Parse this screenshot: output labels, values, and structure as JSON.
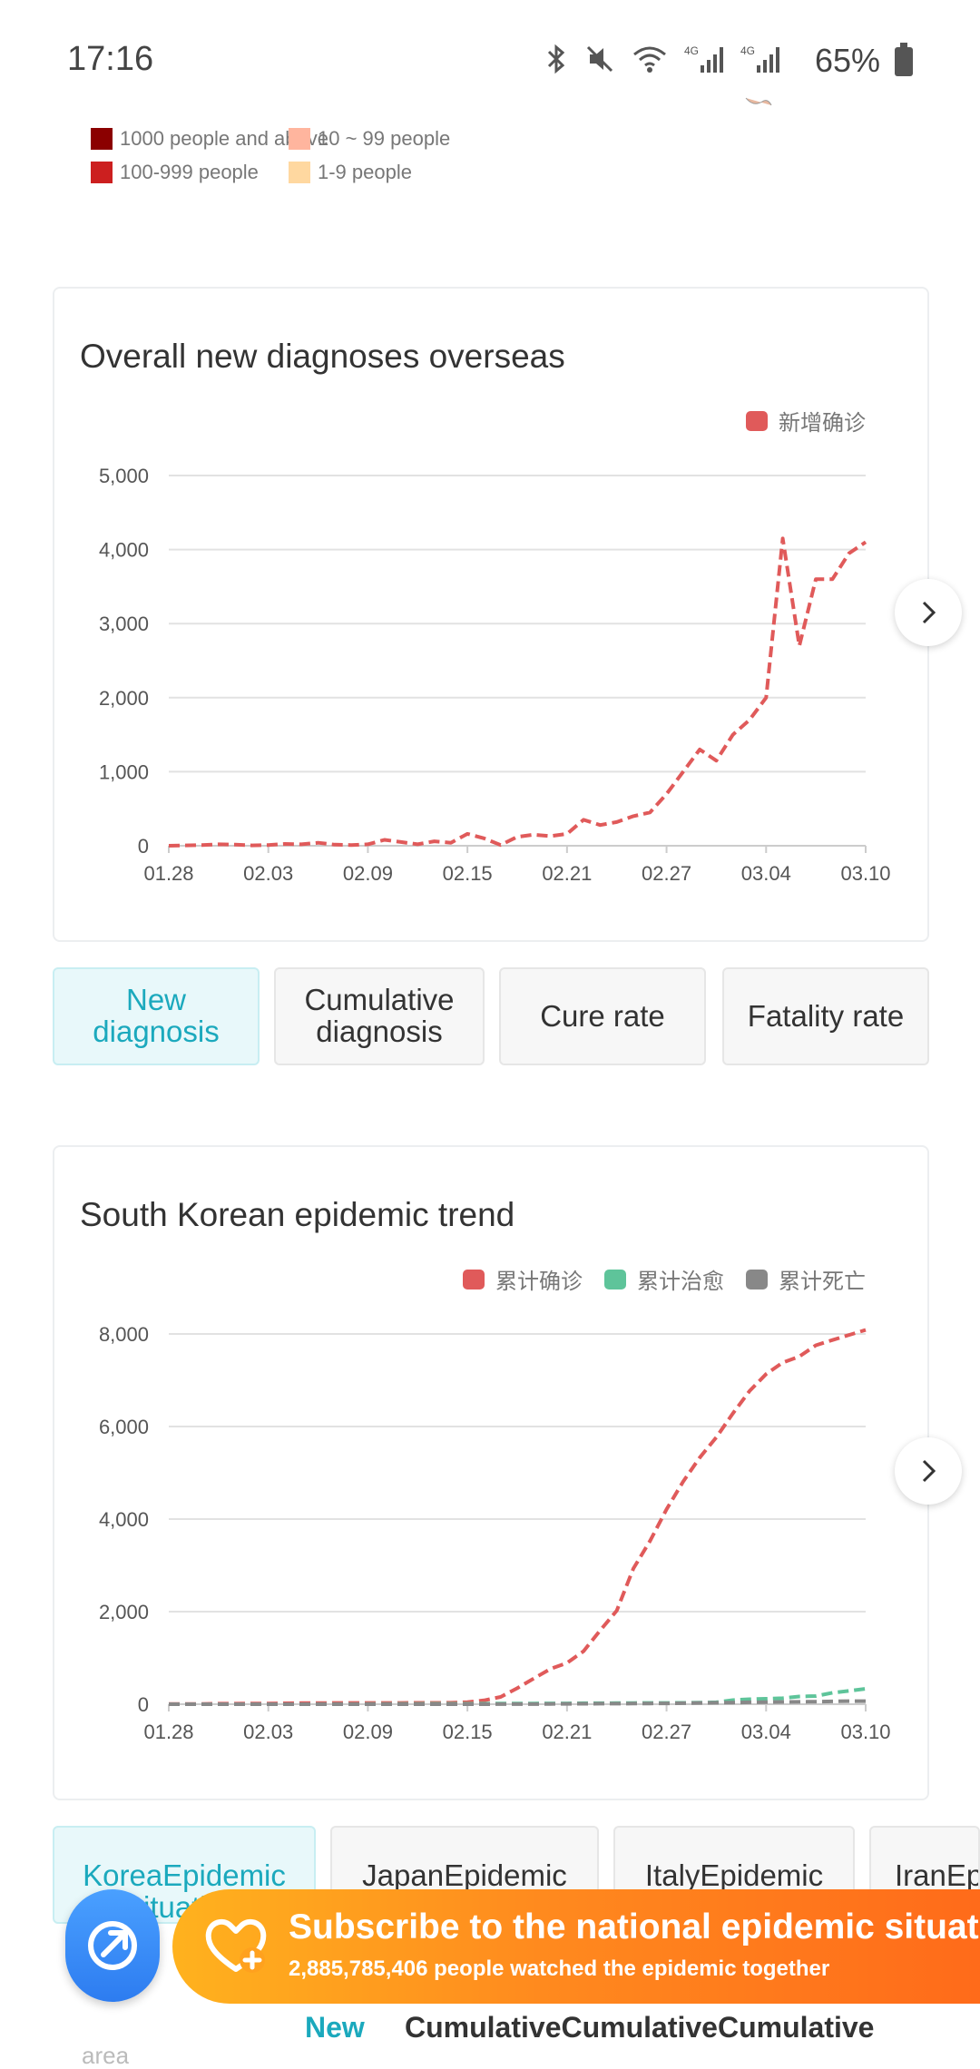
{
  "status_bar": {
    "time": "17:16",
    "icons": [
      "bluetooth-icon",
      "mute-icon",
      "wifi-icon",
      "signal-4g-icon",
      "signal-4g-icon"
    ],
    "battery_text": "65%"
  },
  "map_legend": {
    "items": [
      {
        "label": "1000 people and above",
        "color": "#8b0000"
      },
      {
        "label": "10 ~ 99 people",
        "color": "#ffb59e"
      },
      {
        "label": "100-999 people",
        "color": "#cc1f1f"
      },
      {
        "label": "1-9 people",
        "color": "#ffd8a0"
      }
    ]
  },
  "card1": {
    "title": "Overall new diagnoses overseas",
    "legend": [
      {
        "label": "新增确诊",
        "color": "#e05a5a"
      }
    ]
  },
  "tabs": [
    {
      "label": "New diagnosis",
      "active": true
    },
    {
      "label": "Cumulative diagnosis",
      "active": false
    },
    {
      "label": "Cure rate",
      "active": false
    },
    {
      "label": "Fatality rate",
      "active": false
    }
  ],
  "card2": {
    "title": "South Korean epidemic trend",
    "legend": [
      {
        "label": "累计确诊",
        "color": "#e05a5a"
      },
      {
        "label": "累计治愈",
        "color": "#5ec49a"
      },
      {
        "label": "累计死亡",
        "color": "#888888"
      }
    ]
  },
  "country_tabs": [
    {
      "label": "KoreaEpidemic situation",
      "active": true
    },
    {
      "label": "JapanEpidemic situation",
      "active": false
    },
    {
      "label": "ItalyEpidemic situation",
      "active": false
    },
    {
      "label": "IranEpidemic situation",
      "active": false
    }
  ],
  "subscribe": {
    "title": "Subscribe to the national epidemic situation",
    "desc": "2,885,785,406 people watched the epidemic together"
  },
  "bottom_tabs": {
    "new": "New",
    "cumulative": "CumulativeCumulativeCumulative",
    "fragment": "area"
  },
  "chart_data": [
    {
      "type": "line",
      "title": "Overall new diagnoses overseas",
      "x_ticks": [
        "01.28",
        "02.03",
        "02.09",
        "02.15",
        "02.21",
        "02.27",
        "03.04",
        "03.10"
      ],
      "ylim": [
        0,
        5000
      ],
      "y_ticks": [
        0,
        1000,
        2000,
        3000,
        4000,
        5000
      ],
      "grid": true,
      "legend_position": "top-right",
      "x_days": [
        0,
        1,
        2,
        3,
        4,
        5,
        6,
        7,
        8,
        9,
        10,
        11,
        12,
        13,
        14,
        15,
        16,
        17,
        18,
        19,
        20,
        21,
        22,
        23,
        24,
        25,
        26,
        27,
        28,
        29,
        30,
        31,
        32,
        33,
        34,
        35,
        36,
        37,
        38,
        39,
        40,
        41,
        42
      ],
      "series": [
        {
          "name": "新增确诊",
          "color": "#e05a5a",
          "values": [
            0,
            5,
            10,
            20,
            15,
            5,
            10,
            25,
            20,
            40,
            15,
            10,
            20,
            80,
            50,
            20,
            60,
            40,
            160,
            100,
            10,
            120,
            150,
            130,
            160,
            350,
            280,
            320,
            400,
            450,
            700,
            1000,
            1300,
            1150,
            1500,
            1700,
            2000,
            4150,
            2700,
            3600,
            3600,
            3950,
            4100
          ]
        }
      ]
    },
    {
      "type": "line",
      "title": "South Korean epidemic trend",
      "x_ticks": [
        "01.28",
        "02.03",
        "02.09",
        "02.15",
        "02.21",
        "02.27",
        "03.04",
        "03.10"
      ],
      "ylim": [
        0,
        8000
      ],
      "y_ticks": [
        0,
        2000,
        4000,
        6000,
        8000
      ],
      "grid": true,
      "legend_position": "top-right",
      "x_days": [
        0,
        1,
        2,
        3,
        4,
        5,
        6,
        7,
        8,
        9,
        10,
        11,
        12,
        13,
        14,
        15,
        16,
        17,
        18,
        19,
        20,
        21,
        22,
        23,
        24,
        25,
        26,
        27,
        28,
        29,
        30,
        31,
        32,
        33,
        34,
        35,
        36,
        37,
        38,
        39,
        40,
        41,
        42
      ],
      "series": [
        {
          "name": "累计确诊",
          "color": "#e05a5a",
          "values": [
            4,
            4,
            4,
            11,
            12,
            15,
            16,
            19,
            23,
            24,
            27,
            28,
            28,
            28,
            28,
            29,
            30,
            31,
            46,
            82,
            156,
            346,
            556,
            763,
            893,
            1146,
            1595,
            2022,
            2931,
            3526,
            4212,
            4812,
            5328,
            5766,
            6284,
            6767,
            7134,
            7382,
            7513,
            7755,
            7869,
            7979,
            8086
          ]
        },
        {
          "name": "累计治愈",
          "color": "#5ec49a",
          "values": [
            0,
            0,
            0,
            0,
            0,
            0,
            0,
            0,
            0,
            1,
            1,
            2,
            3,
            4,
            7,
            7,
            9,
            9,
            10,
            12,
            16,
            16,
            16,
            17,
            18,
            22,
            22,
            24,
            26,
            27,
            28,
            30,
            34,
            41,
            88,
            108,
            118,
            130,
            166,
            177,
            247,
            288,
            333
          ]
        },
        {
          "name": "累计死亡",
          "color": "#888888",
          "values": [
            0,
            0,
            0,
            0,
            0,
            0,
            0,
            0,
            0,
            0,
            0,
            0,
            0,
            0,
            0,
            0,
            0,
            0,
            0,
            0,
            1,
            2,
            2,
            5,
            7,
            10,
            11,
            12,
            13,
            16,
            17,
            22,
            28,
            32,
            35,
            42,
            44,
            50,
            51,
            54,
            60,
            66,
            67
          ]
        }
      ]
    }
  ]
}
